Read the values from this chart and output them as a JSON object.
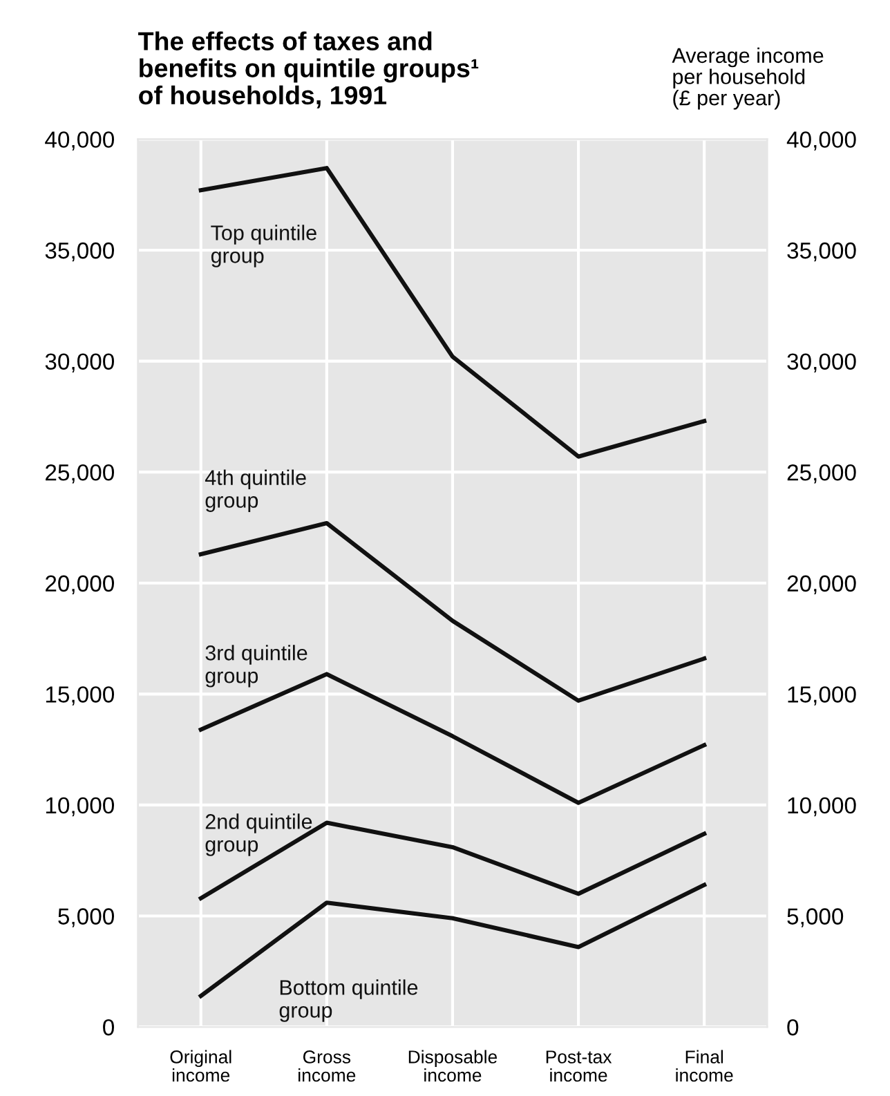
{
  "chart_data": {
    "type": "line",
    "title": "The effects of taxes and\nbenefits on quintile groups¹\nof households, 1991",
    "y2label": "Average income\nper household\n(£ per year)",
    "categories": [
      "Original\nincome",
      "Gross\nincome",
      "Disposable\nincome",
      "Post-tax\nincome",
      "Final\nincome"
    ],
    "series": [
      {
        "name": "Top quintile\ngroup",
        "color": "#111111",
        "values": [
          37700,
          38700,
          30200,
          25700,
          27300
        ]
      },
      {
        "name": "4th quintile\ngroup",
        "color": "#111111",
        "values": [
          21300,
          22700,
          18300,
          14700,
          16600
        ]
      },
      {
        "name": "3rd quintile\ngroup",
        "color": "#111111",
        "values": [
          13400,
          15900,
          13100,
          10100,
          12700
        ]
      },
      {
        "name": "2nd quintile\ngroup",
        "color": "#111111",
        "values": [
          5800,
          9200,
          8100,
          6000,
          8700
        ]
      },
      {
        "name": "Bottom quintile\ngroup",
        "color": "#111111",
        "values": [
          1400,
          5600,
          4900,
          3600,
          6400
        ]
      }
    ],
    "ylim": [
      0,
      40000
    ],
    "yticks": [
      {
        "value": 0,
        "label": "0"
      },
      {
        "value": 5000,
        "label": "5,000"
      },
      {
        "value": 10000,
        "label": "10,000"
      },
      {
        "value": 15000,
        "label": "15,000"
      },
      {
        "value": 20000,
        "label": "20,000"
      },
      {
        "value": 25000,
        "label": "25,000"
      },
      {
        "value": 30000,
        "label": "30,000"
      },
      {
        "value": 35000,
        "label": "35,000"
      },
      {
        "value": 40000,
        "label": "40,000"
      }
    ],
    "y2lim": [
      0,
      40000
    ],
    "y2ticks": [
      {
        "value": 0,
        "label": "0"
      },
      {
        "value": 5000,
        "label": "5,000"
      },
      {
        "value": 10000,
        "label": "10,000"
      },
      {
        "value": 15000,
        "label": "15,000"
      },
      {
        "value": 20000,
        "label": "20,000"
      },
      {
        "value": 25000,
        "label": "25,000"
      },
      {
        "value": 30000,
        "label": "30,000"
      },
      {
        "value": 35000,
        "label": "35,000"
      },
      {
        "value": 40000,
        "label": "40,000"
      }
    ],
    "grid": true,
    "legend": false,
    "marker": "none",
    "line_style": "solid"
  }
}
